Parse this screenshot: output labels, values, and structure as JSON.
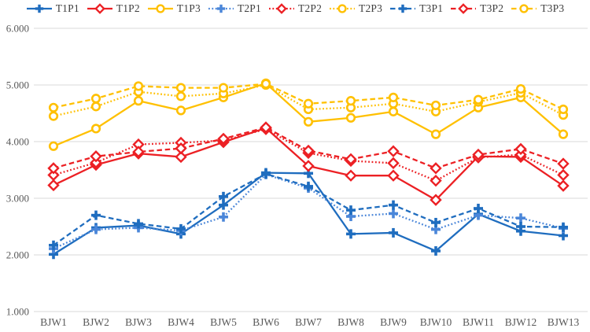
{
  "chart_data": {
    "type": "line",
    "title": "",
    "xlabel": "",
    "ylabel": "",
    "legend_position": "top",
    "grid": "horizontal",
    "ylim": [
      1,
      6
    ],
    "yticks": [
      {
        "label": "6.000",
        "value": 6
      },
      {
        "label": "5.000",
        "value": 5
      },
      {
        "label": "4.000",
        "value": 4
      },
      {
        "label": "3.000",
        "value": 3
      },
      {
        "label": "2.000",
        "value": 2
      },
      {
        "label": "1.000",
        "value": 1
      }
    ],
    "x_categories": [
      "BJW1",
      "BJW2",
      "BJW3",
      "BJW4",
      "BJW5",
      "BJW6",
      "BJW7",
      "BJW8",
      "BJW9",
      "BJW10",
      "BJW11",
      "BJW12",
      "BJW13"
    ],
    "series": [
      {
        "name": "T1P1",
        "color": "#1f6dbf",
        "marker": "plus",
        "line": "solid",
        "values": [
          2.01,
          2.48,
          2.52,
          2.37,
          2.88,
          3.45,
          3.44,
          2.37,
          2.39,
          2.07,
          2.72,
          2.42,
          2.34
        ]
      },
      {
        "name": "T1P2",
        "color": "#ec2024",
        "marker": "diamond",
        "line": "solid",
        "values": [
          3.23,
          3.59,
          3.79,
          3.73,
          3.99,
          4.24,
          3.57,
          3.4,
          3.4,
          2.97,
          3.74,
          3.73,
          3.22
        ]
      },
      {
        "name": "T1P3",
        "color": "#ffc000",
        "marker": "circle",
        "line": "solid",
        "values": [
          3.92,
          4.23,
          4.72,
          4.55,
          4.78,
          5.03,
          4.35,
          4.42,
          4.53,
          4.13,
          4.6,
          4.78,
          4.13
        ]
      },
      {
        "name": "T2P1",
        "color": "#4a86d9",
        "marker": "plus",
        "line": "dotted",
        "values": [
          2.11,
          2.45,
          2.48,
          2.43,
          2.67,
          3.42,
          3.18,
          2.68,
          2.73,
          2.45,
          2.7,
          2.65,
          2.47
        ]
      },
      {
        "name": "T2P2",
        "color": "#ec2024",
        "marker": "diamond",
        "line": "dotted",
        "values": [
          3.41,
          3.63,
          3.95,
          3.98,
          4.02,
          4.22,
          3.8,
          3.66,
          3.62,
          3.31,
          3.72,
          3.77,
          3.41
        ]
      },
      {
        "name": "T2P3",
        "color": "#ffc000",
        "marker": "circle",
        "line": "dotted",
        "values": [
          4.45,
          4.62,
          4.88,
          4.8,
          4.85,
          5.0,
          4.57,
          4.6,
          4.67,
          4.53,
          4.7,
          4.86,
          4.47
        ]
      },
      {
        "name": "T3P1",
        "color": "#1f6dbf",
        "marker": "plus",
        "line": "dashed",
        "values": [
          2.17,
          2.7,
          2.55,
          2.46,
          3.03,
          3.43,
          3.21,
          2.79,
          2.88,
          2.57,
          2.82,
          2.5,
          2.49
        ]
      },
      {
        "name": "T3P2",
        "color": "#ec2024",
        "marker": "diamond",
        "line": "dashed",
        "values": [
          3.53,
          3.74,
          3.82,
          3.88,
          4.05,
          4.25,
          3.84,
          3.69,
          3.83,
          3.53,
          3.77,
          3.87,
          3.61
        ]
      },
      {
        "name": "T3P3",
        "color": "#ffc000",
        "marker": "circle",
        "line": "dashed",
        "values": [
          4.6,
          4.76,
          4.98,
          4.95,
          4.95,
          5.02,
          4.67,
          4.72,
          4.78,
          4.64,
          4.74,
          4.93,
          4.57
        ]
      }
    ],
    "colors": {
      "grid": "#d9d9d9",
      "axis_text": "#595959",
      "legend_text": "#404040",
      "blue": "#1f6dbf",
      "light_blue": "#4a86d9",
      "red": "#ec2024",
      "gold": "#ffc000"
    }
  }
}
